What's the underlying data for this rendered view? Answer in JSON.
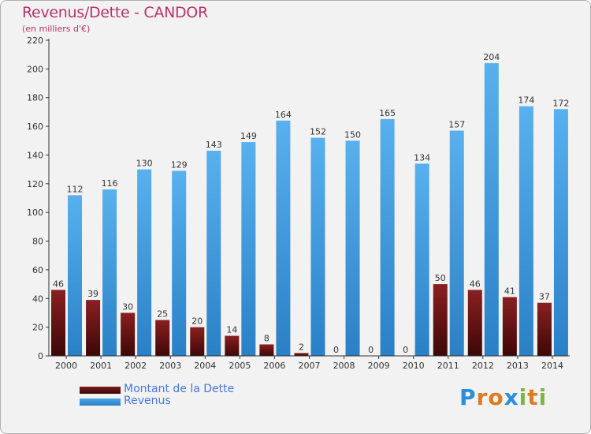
{
  "header": {
    "title": "Revenus/Dette - CANDOR",
    "subtitle": "(en milliers d'€)"
  },
  "legend": {
    "debt_label": "Montant de la Dette",
    "revenue_label": "Revenus"
  },
  "brand": {
    "text": "Proxiti",
    "letters": [
      "P",
      "r",
      "o",
      "x",
      "i",
      "t",
      "i"
    ],
    "letter_colors": [
      "#2a8fd6",
      "#e07a1f",
      "#e07a1f",
      "#2a8fd6",
      "#7ab648",
      "#e07a1f",
      "#7ab648"
    ]
  },
  "colors": {
    "debt": "#7a1a1a",
    "revenue": "#4aa6e8",
    "axis": "#333333",
    "grid": "#d8d8d8"
  },
  "chart_data": {
    "type": "bar",
    "title": "Revenus/Dette - CANDOR",
    "ylabel": "(en milliers d'€)",
    "xlabel": "",
    "categories": [
      "2000",
      "2001",
      "2002",
      "2003",
      "2004",
      "2005",
      "2006",
      "2007",
      "2008",
      "2009",
      "2010",
      "2011",
      "2012",
      "2013",
      "2014"
    ],
    "series": [
      {
        "name": "Montant de la Dette",
        "values": [
          46,
          39,
          30,
          25,
          20,
          14,
          8,
          2,
          0,
          0,
          0,
          50,
          46,
          41,
          37
        ]
      },
      {
        "name": "Revenus",
        "values": [
          112,
          116,
          130,
          129,
          143,
          149,
          164,
          152,
          150,
          165,
          134,
          157,
          204,
          174,
          172
        ]
      }
    ],
    "ylim": [
      0,
      220
    ],
    "yticks": [
      0,
      20,
      40,
      60,
      80,
      100,
      120,
      140,
      160,
      180,
      200,
      220
    ],
    "grid": false,
    "legend_position": "bottom-left"
  }
}
